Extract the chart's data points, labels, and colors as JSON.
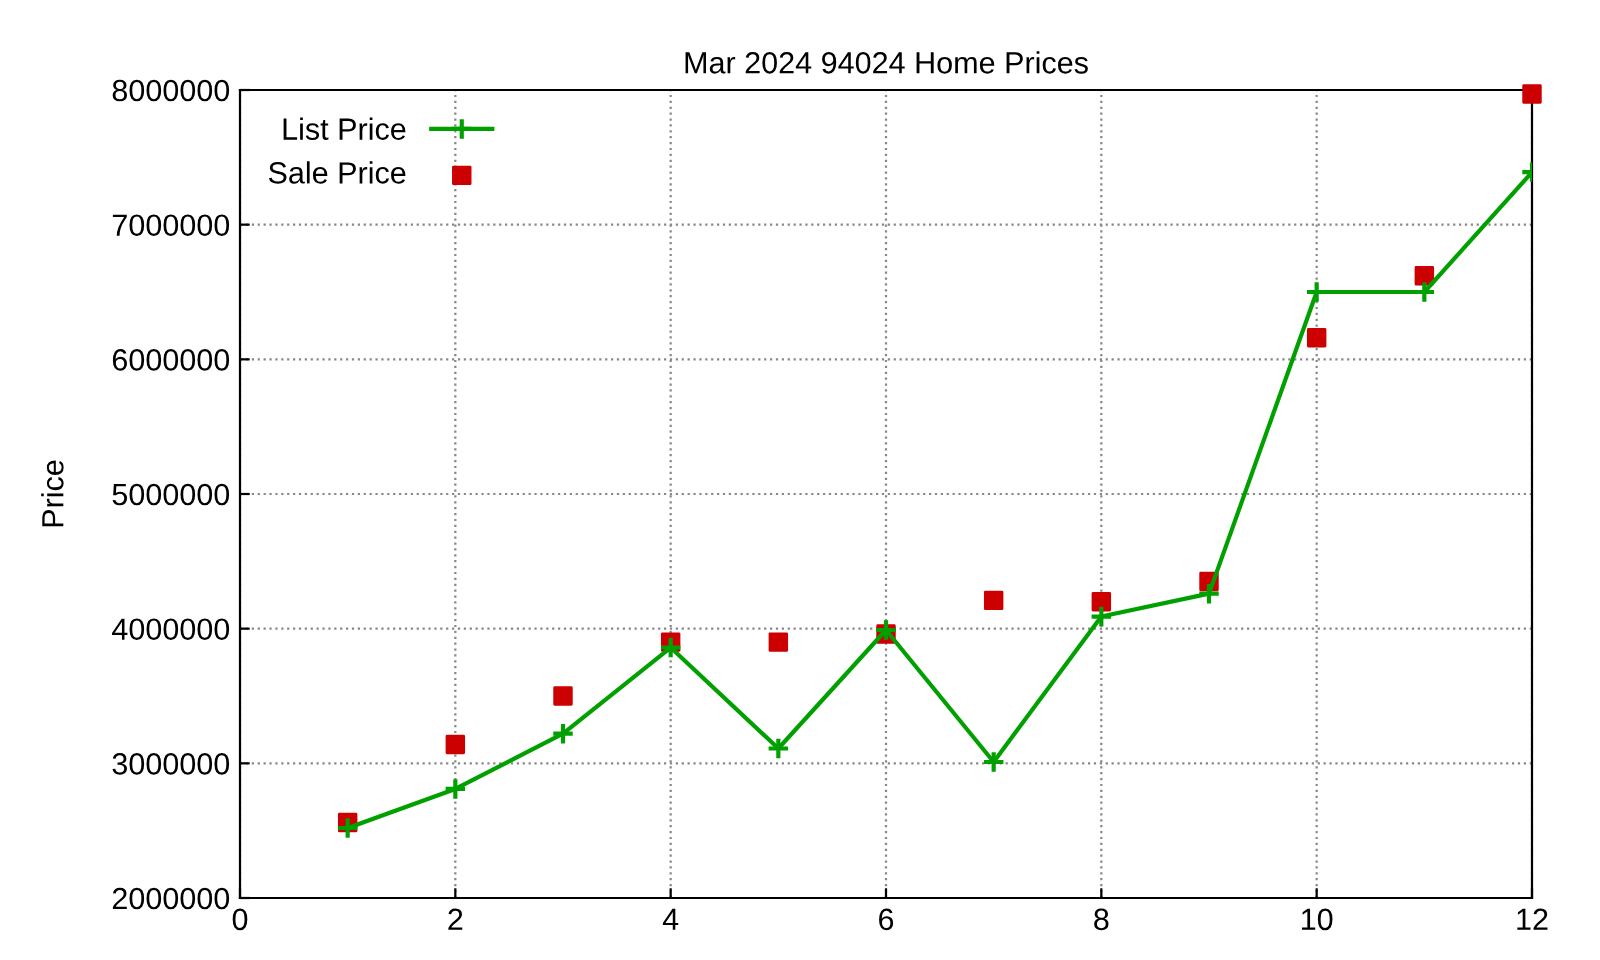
{
  "chart_data": {
    "type": "line",
    "title": "Mar 2024 94024 Home Prices",
    "ylabel": "Price",
    "x": [
      1,
      2,
      3,
      4,
      5,
      6,
      7,
      8,
      9,
      10,
      11,
      12
    ],
    "series": [
      {
        "name": "List Price",
        "color": "#00a000",
        "marker": "cross",
        "values": [
          2520000,
          2810000,
          3220000,
          3860000,
          3110000,
          3990000,
          3010000,
          4090000,
          4260000,
          6500000,
          6500000,
          7390000
        ]
      },
      {
        "name": "Sale Price",
        "type": "scatter",
        "color": "#cc0000",
        "marker": "square",
        "values": [
          2560000,
          3140000,
          3500000,
          3900000,
          3900000,
          3960000,
          4210000,
          4200000,
          4350000,
          6160000,
          6620000,
          7970000
        ]
      }
    ],
    "xlim": [
      0,
      12
    ],
    "xticks": [
      0,
      2,
      4,
      6,
      8,
      10,
      12
    ],
    "ylim": [
      2000000,
      8000000
    ],
    "yticks": [
      2000000,
      3000000,
      4000000,
      5000000,
      6000000,
      7000000,
      8000000
    ],
    "grid": true,
    "legend": "top left"
  }
}
